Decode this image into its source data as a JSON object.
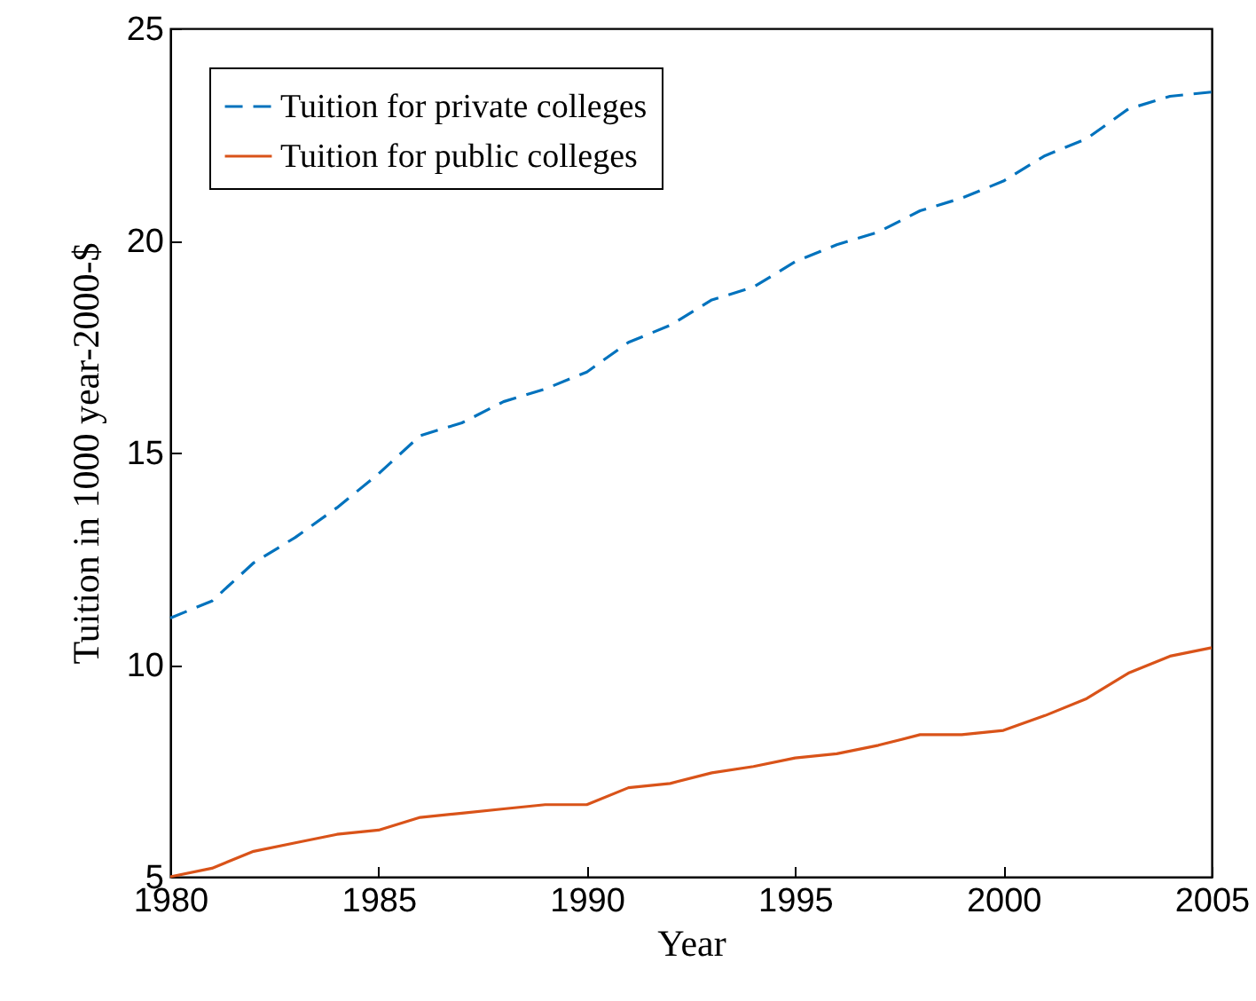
{
  "chart_data": {
    "type": "line",
    "xlabel": "Year",
    "ylabel": "Tuition in 1000 year-2000-$",
    "x": [
      1980,
      1981,
      1982,
      1983,
      1984,
      1985,
      1986,
      1987,
      1988,
      1989,
      1990,
      1991,
      1992,
      1993,
      1994,
      1995,
      1996,
      1997,
      1998,
      1999,
      2000,
      2001,
      2002,
      2003,
      2004,
      2005
    ],
    "series": [
      {
        "name": "Tuition for private colleges",
        "color": "#0072bd",
        "line_style": "dashed",
        "values": [
          11.1,
          11.5,
          12.4,
          13.0,
          13.7,
          14.5,
          15.4,
          15.7,
          16.2,
          16.5,
          16.9,
          17.6,
          18.0,
          18.6,
          18.9,
          19.5,
          19.9,
          20.2,
          20.7,
          21.0,
          21.4,
          22.0,
          22.4,
          23.1,
          23.4,
          23.5
        ]
      },
      {
        "name": "Tuition for public colleges",
        "color": "#d95319",
        "line_style": "solid",
        "values": [
          5.0,
          5.2,
          5.6,
          5.8,
          6.0,
          6.1,
          6.4,
          6.5,
          6.6,
          6.7,
          6.7,
          7.1,
          7.2,
          7.45,
          7.6,
          7.8,
          7.9,
          8.1,
          8.35,
          8.35,
          8.45,
          8.8,
          9.2,
          9.8,
          10.2,
          10.4
        ]
      }
    ],
    "xlim": [
      1980,
      2005
    ],
    "xticks": [
      1980,
      1985,
      1990,
      1995,
      2000,
      2005
    ],
    "ylim": [
      5,
      25
    ],
    "yticks": [
      5,
      10,
      15,
      20,
      25
    ],
    "grid": false,
    "legend": "top left"
  }
}
